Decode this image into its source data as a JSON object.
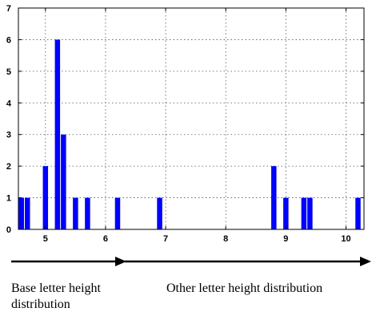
{
  "chart_data": {
    "type": "bar",
    "x": [
      4.6,
      4.7,
      5.0,
      5.2,
      5.3,
      5.5,
      5.7,
      6.2,
      6.9,
      8.8,
      9.0,
      9.3,
      9.4,
      10.2
    ],
    "values": [
      1,
      1,
      2,
      6,
      3,
      1,
      1,
      1,
      1,
      2,
      1,
      1,
      1,
      1
    ],
    "xlim": [
      4.55,
      10.3
    ],
    "ylim": [
      0,
      7
    ],
    "x_ticks": [
      "5",
      "6",
      "7",
      "8",
      "9",
      "10"
    ],
    "x_tick_values": [
      5,
      6,
      7,
      8,
      9,
      10
    ],
    "y_ticks": [
      "0",
      "1",
      "2",
      "3",
      "4",
      "5",
      "6",
      "7"
    ],
    "y_tick_values": [
      0,
      1,
      2,
      3,
      4,
      5,
      6,
      7
    ],
    "grid": true,
    "bar_color": "#0000ff"
  },
  "annotations": {
    "base_label": "Base letter height distribution",
    "other_label": "Other letter height distribution"
  }
}
